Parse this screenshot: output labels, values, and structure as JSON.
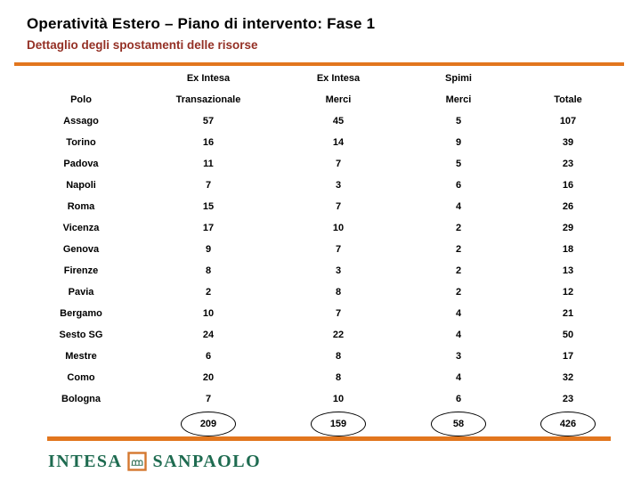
{
  "slide": {
    "title": "Operatività Estero – Piano di intervento: Fase 1",
    "subtitle": "Dettaglio degli spostamenti delle risorse"
  },
  "chart_data": {
    "type": "table",
    "title": "Dettaglio degli spostamenti delle risorse",
    "columns": [
      "Polo",
      "Ex Intesa Transazionale",
      "Ex Intesa Merci",
      "Spimi Merci",
      "Totale"
    ],
    "rows": [
      [
        "Assago",
        57,
        45,
        5,
        107
      ],
      [
        "Torino",
        16,
        14,
        9,
        39
      ],
      [
        "Padova",
        11,
        7,
        5,
        23
      ],
      [
        "Napoli",
        7,
        3,
        6,
        16
      ],
      [
        "Roma",
        15,
        7,
        4,
        26
      ],
      [
        "Vicenza",
        17,
        10,
        2,
        29
      ],
      [
        "Genova",
        9,
        7,
        2,
        18
      ],
      [
        "Firenze",
        8,
        3,
        2,
        13
      ],
      [
        "Pavia",
        2,
        8,
        2,
        12
      ],
      [
        "Bergamo",
        10,
        7,
        4,
        21
      ],
      [
        "Sesto SG",
        24,
        22,
        4,
        50
      ],
      [
        "Mestre",
        6,
        8,
        3,
        17
      ],
      [
        "Como",
        20,
        8,
        4,
        32
      ],
      [
        "Bologna",
        7,
        10,
        6,
        23
      ]
    ],
    "totals": [
      209,
      159,
      58,
      426
    ]
  },
  "table": {
    "header_row1": [
      "",
      "Ex Intesa",
      "Ex Intesa",
      "Spimi",
      ""
    ],
    "header_row2": [
      "Polo",
      "Transazionale",
      "Merci",
      "Merci",
      "Totale"
    ],
    "rows": [
      {
        "polo": "Assago",
        "values": [
          57,
          45,
          5,
          107
        ]
      },
      {
        "polo": "Torino",
        "values": [
          16,
          14,
          9,
          39
        ]
      },
      {
        "polo": "Padova",
        "values": [
          11,
          7,
          5,
          23
        ]
      },
      {
        "polo": "Napoli",
        "values": [
          7,
          3,
          6,
          16
        ]
      },
      {
        "polo": "Roma",
        "values": [
          15,
          7,
          4,
          26
        ]
      },
      {
        "polo": "Vicenza",
        "values": [
          17,
          10,
          2,
          29
        ]
      },
      {
        "polo": "Genova",
        "values": [
          9,
          7,
          2,
          18
        ]
      },
      {
        "polo": "Firenze",
        "values": [
          8,
          3,
          2,
          13
        ]
      },
      {
        "polo": "Pavia",
        "values": [
          2,
          8,
          2,
          12
        ]
      },
      {
        "polo": "Bergamo",
        "values": [
          10,
          7,
          4,
          21
        ]
      },
      {
        "polo": "Sesto SG",
        "values": [
          24,
          22,
          4,
          50
        ]
      },
      {
        "polo": "Mestre",
        "values": [
          6,
          8,
          3,
          17
        ]
      },
      {
        "polo": "Como",
        "values": [
          20,
          8,
          4,
          32
        ]
      },
      {
        "polo": "Bologna",
        "values": [
          7,
          10,
          6,
          23
        ]
      }
    ],
    "totals": [
      209,
      159,
      58,
      426
    ]
  },
  "footer": {
    "logo_left": "INTESA",
    "logo_right": "SANPAOLO"
  },
  "colors": {
    "accent_orange": "#E2761E",
    "subtitle_red": "#943025",
    "logo_green": "#1E6B50",
    "icon_orange": "#D4782F"
  }
}
